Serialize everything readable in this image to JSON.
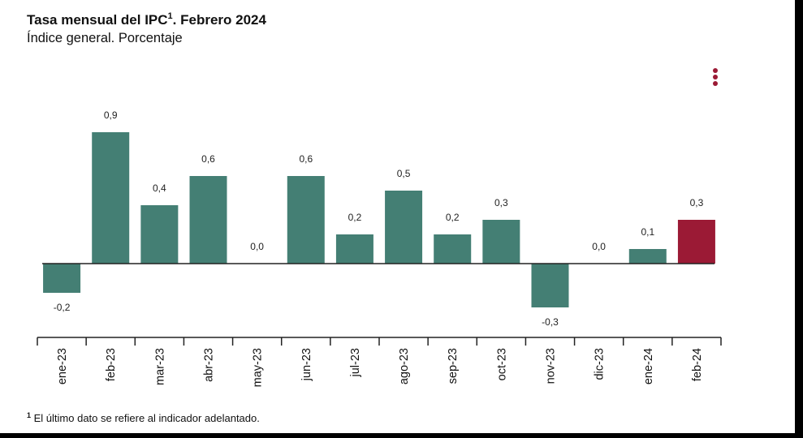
{
  "header": {
    "title": "Tasa mensual del IPC",
    "title_sup": "1",
    "title_rest": ". Febrero 2024",
    "subtitle": "Índice general. Porcentaje"
  },
  "footnote": {
    "sup": "1",
    "text": " El último dato se refiere al indicador adelantado."
  },
  "menu": {
    "icon": "kebab-menu-icon"
  },
  "colors": {
    "bar": "#447f74",
    "highlight": "#9b1a35",
    "axis": "#222222"
  },
  "chart_data": {
    "type": "bar",
    "title": "Tasa mensual del IPC. Febrero 2024",
    "subtitle": "Índice general. Porcentaje",
    "categories": [
      "ene-23",
      "feb-23",
      "mar-23",
      "abr-23",
      "may-23",
      "jun-23",
      "jul-23",
      "ago-23",
      "sep-23",
      "oct-23",
      "nov-23",
      "dic-23",
      "ene-24",
      "feb-24"
    ],
    "values": [
      -0.2,
      0.9,
      0.4,
      0.6,
      0.0,
      0.6,
      0.2,
      0.5,
      0.2,
      0.3,
      -0.3,
      0.0,
      0.1,
      0.3
    ],
    "value_labels": [
      "-0,2",
      "0,9",
      "0,4",
      "0,6",
      "0,0",
      "0,6",
      "0,2",
      "0,5",
      "0,2",
      "0,3",
      "-0,3",
      "0,0",
      "0,1",
      "0,3"
    ],
    "highlight_index": 13,
    "xlabel": "",
    "ylabel": "",
    "grid": false,
    "legend": "none"
  }
}
